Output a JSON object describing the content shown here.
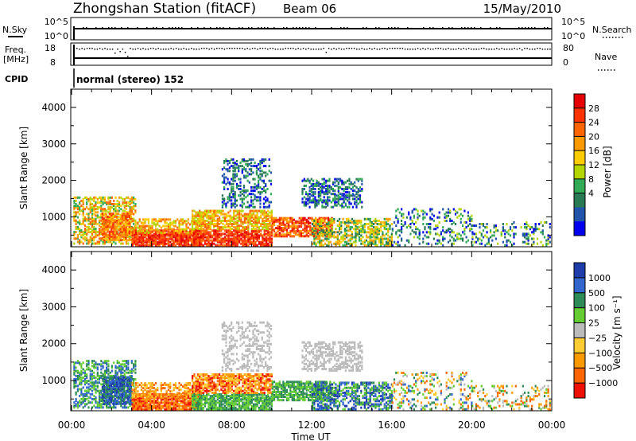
{
  "header": {
    "station": "Zhongshan Station (fitACF)",
    "beam": "Beam 06",
    "date": "15/May/2010"
  },
  "top_panels": {
    "nsky_label": "N.Sky",
    "nsky_ticks": [
      "10^5",
      "10^0"
    ],
    "nsearch_label": "N.Search",
    "freq_label_1": "Freq.",
    "freq_label_2": "[MHz]",
    "freq_ticks": [
      "18",
      "8"
    ],
    "nave_label": "Nave",
    "nave_ticks": [
      "80",
      "0"
    ],
    "cpid_label": "CPID",
    "cpid_text": "normal (stereo) 152"
  },
  "chart_data": [
    {
      "type": "heatmap",
      "name": "power",
      "ylabel": "Slant Range [km]",
      "xlabel": "",
      "colorbar_label": "Power [dB]",
      "colorbar_ticks": [
        "28",
        "24",
        "20",
        "16",
        "12",
        "8",
        "4"
      ],
      "colorbar_colors": [
        "#e60000",
        "#ff3300",
        "#ff6600",
        "#ff9900",
        "#ffcc00",
        "#b3d600",
        "#33aa55",
        "#2a7a55",
        "#2255aa",
        "#0000ee"
      ],
      "y_ticks": [
        "4000",
        "3000",
        "2000",
        "1000"
      ],
      "ylim": [
        180,
        4500
      ],
      "x_ticks": [
        "00:00",
        "04:00",
        "08:00",
        "12:00",
        "16:00",
        "20:00",
        "00:00"
      ]
    },
    {
      "type": "heatmap",
      "name": "velocity",
      "ylabel": "Slant Range [km]",
      "xlabel": "Time UT",
      "colorbar_label": "Velocity [m s⁻¹]",
      "colorbar_ticks": [
        "1000",
        "500",
        "100",
        "25",
        "−25",
        "−100",
        "−500",
        "−1000"
      ],
      "colorbar_colors": [
        "#1e3caa",
        "#3366cc",
        "#2e8b57",
        "#66cc33",
        "#bbbbbb",
        "#ffcc33",
        "#ff9900",
        "#ff6600",
        "#ee1100"
      ],
      "y_ticks": [
        "4000",
        "3000",
        "2000",
        "1000"
      ],
      "ylim": [
        180,
        4500
      ],
      "x_ticks": [
        "00:00",
        "04:00",
        "08:00",
        "12:00",
        "16:00",
        "20:00",
        "00:00"
      ]
    }
  ]
}
